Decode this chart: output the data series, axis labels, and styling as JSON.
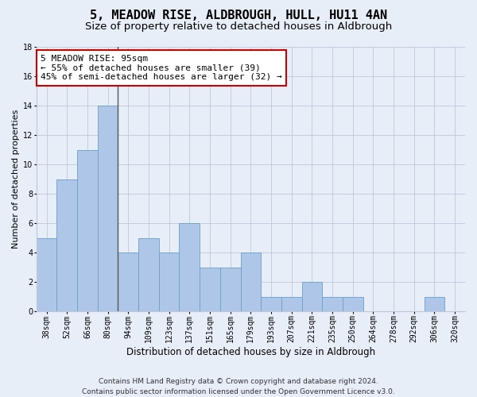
{
  "title": "5, MEADOW RISE, ALDBROUGH, HULL, HU11 4AN",
  "subtitle": "Size of property relative to detached houses in Aldbrough",
  "xlabel": "Distribution of detached houses by size in Aldbrough",
  "ylabel": "Number of detached properties",
  "categories": [
    "38sqm",
    "52sqm",
    "66sqm",
    "80sqm",
    "94sqm",
    "109sqm",
    "123sqm",
    "137sqm",
    "151sqm",
    "165sqm",
    "179sqm",
    "193sqm",
    "207sqm",
    "221sqm",
    "235sqm",
    "250sqm",
    "264sqm",
    "278sqm",
    "292sqm",
    "306sqm",
    "320sqm"
  ],
  "values": [
    5,
    9,
    11,
    14,
    4,
    5,
    4,
    6,
    3,
    3,
    4,
    1,
    1,
    2,
    1,
    1,
    0,
    0,
    0,
    1,
    0
  ],
  "bar_color": "#aec6e8",
  "bar_edge_color": "#6a9fc8",
  "vline_index": 4,
  "vline_color": "#555555",
  "ylim": [
    0,
    18
  ],
  "yticks": [
    0,
    2,
    4,
    6,
    8,
    10,
    12,
    14,
    16,
    18
  ],
  "annotation_line1": "5 MEADOW RISE: 95sqm",
  "annotation_line2": "← 55% of detached houses are smaller (39)",
  "annotation_line3": "45% of semi-detached houses are larger (32) →",
  "annotation_box_color": "#ffffff",
  "annotation_box_edge": "#cc0000",
  "bg_color": "#e8eef8",
  "plot_bg_color": "#e8eef8",
  "footer": "Contains HM Land Registry data © Crown copyright and database right 2024.\nContains public sector information licensed under the Open Government Licence v3.0.",
  "title_fontsize": 11,
  "subtitle_fontsize": 9.5,
  "xlabel_fontsize": 8.5,
  "ylabel_fontsize": 8,
  "tick_fontsize": 7,
  "footer_fontsize": 6.5,
  "ann_fontsize": 8
}
